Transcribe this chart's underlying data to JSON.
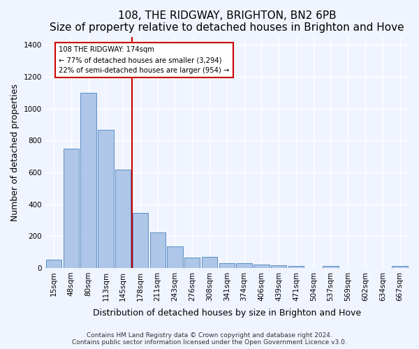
{
  "title": "108, THE RIDGWAY, BRIGHTON, BN2 6PB",
  "subtitle": "Size of property relative to detached houses in Brighton and Hove",
  "xlabel": "Distribution of detached houses by size in Brighton and Hove",
  "ylabel": "Number of detached properties",
  "categories": [
    "15sqm",
    "48sqm",
    "80sqm",
    "113sqm",
    "145sqm",
    "178sqm",
    "211sqm",
    "243sqm",
    "276sqm",
    "308sqm",
    "341sqm",
    "374sqm",
    "406sqm",
    "439sqm",
    "471sqm",
    "504sqm",
    "537sqm",
    "569sqm",
    "602sqm",
    "634sqm",
    "667sqm"
  ],
  "values": [
    50,
    750,
    1100,
    865,
    615,
    345,
    225,
    135,
    65,
    70,
    30,
    30,
    22,
    15,
    12,
    0,
    12,
    0,
    0,
    0,
    12
  ],
  "bar_color": "#aec6e8",
  "bar_edge_color": "#5a8fc2",
  "background_color": "#f0f4ff",
  "grid_color": "#ffffff",
  "red_line_x": 4.5,
  "annotation_text": "108 THE RIDGWAY: 174sqm\n← 77% of detached houses are smaller (3,294)\n22% of semi-detached houses are larger (954) →",
  "annotation_box_color": "#ffffff",
  "annotation_box_edge": "#cc0000",
  "ylim": [
    0,
    1450
  ],
  "yticks": [
    0,
    200,
    400,
    600,
    800,
    1000,
    1200,
    1400
  ],
  "footer_line1": "Contains HM Land Registry data © Crown copyright and database right 2024.",
  "footer_line2": "Contains public sector information licensed under the Open Government Licence v3.0.",
  "title_fontsize": 11,
  "xlabel_fontsize": 9,
  "ylabel_fontsize": 9,
  "tick_fontsize": 7.5,
  "footer_fontsize": 6.5
}
